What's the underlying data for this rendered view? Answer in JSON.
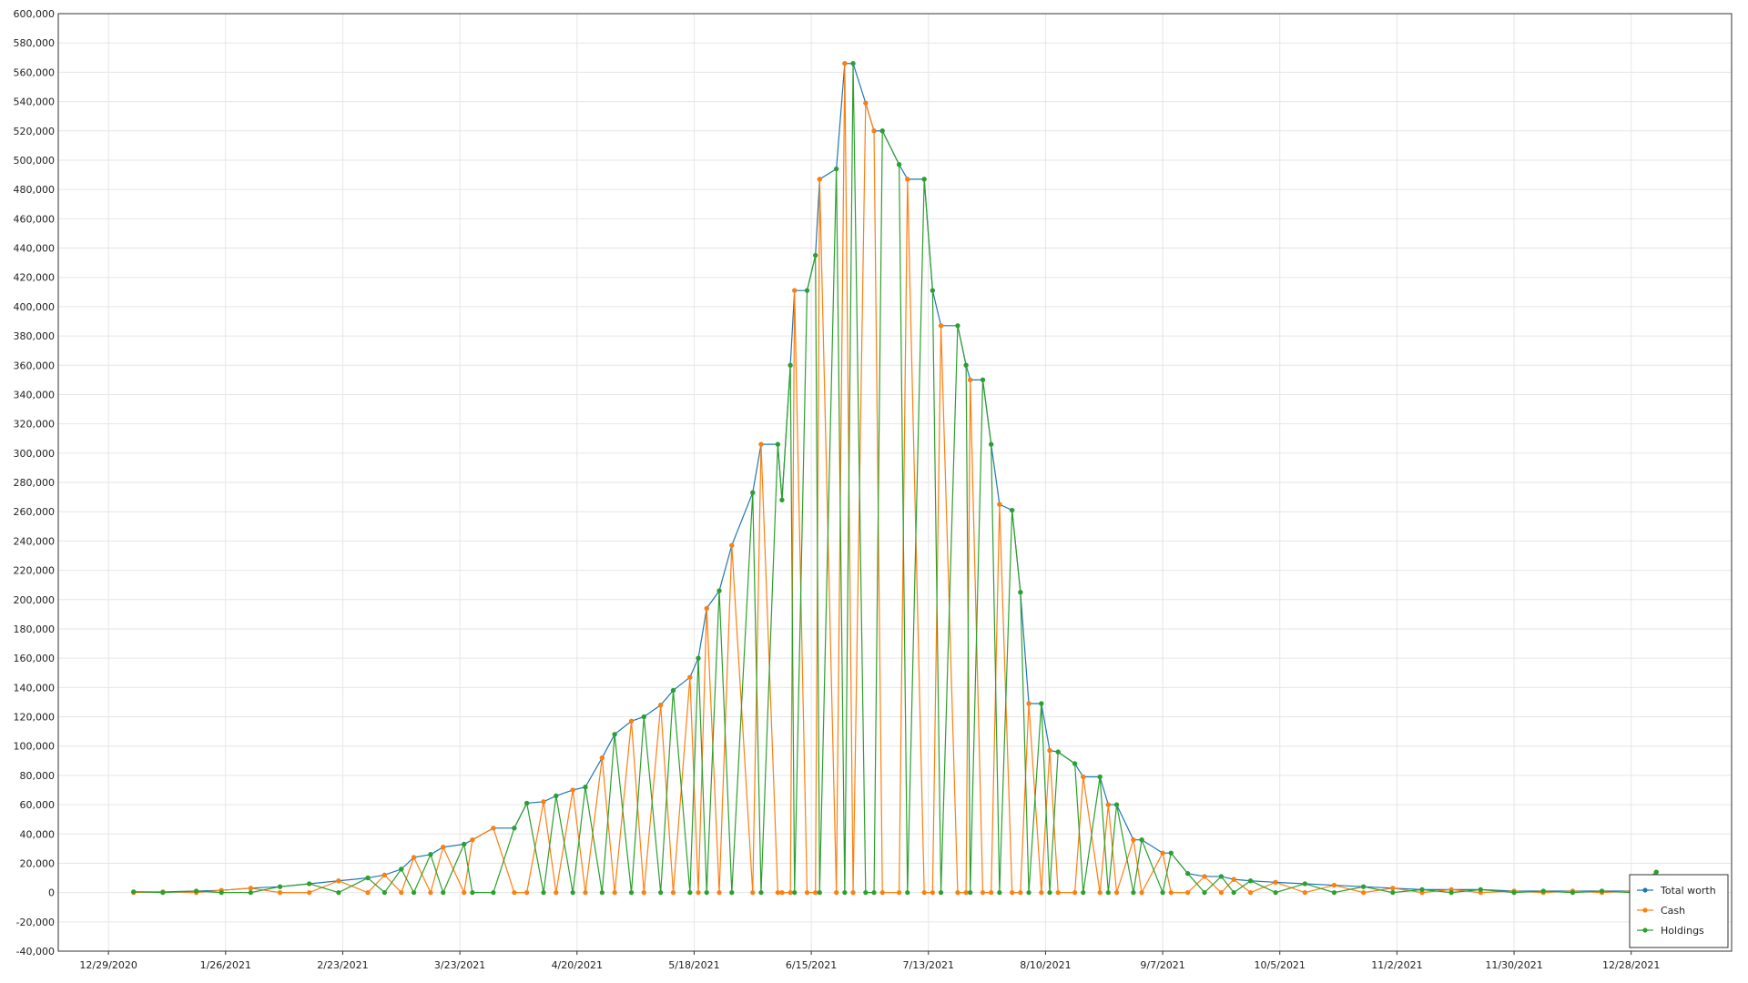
{
  "chart_data": {
    "type": "line",
    "x": [
      "1/4/2021",
      "1/11/2021",
      "1/19/2021",
      "1/25/2021",
      "2/1/2021",
      "2/8/2021",
      "2/15/2021",
      "2/22/2021",
      "3/1/2021",
      "3/5/2021",
      "3/9/2021",
      "3/12/2021",
      "3/16/2021",
      "3/19/2021",
      "3/24/2021",
      "3/26/2021",
      "3/31/2021",
      "4/5/2021",
      "4/8/2021",
      "4/12/2021",
      "4/15/2021",
      "4/19/2021",
      "4/22/2021",
      "4/26/2021",
      "4/29/2021",
      "5/3/2021",
      "5/6/2021",
      "5/10/2021",
      "5/13/2021",
      "5/17/2021",
      "5/19/2021",
      "5/21/2021",
      "5/24/2021",
      "5/27/2021",
      "6/1/2021",
      "6/3/2021",
      "6/7/2021",
      "6/8/2021",
      "6/10/2021",
      "6/11/2021",
      "6/14/2021",
      "6/16/2021",
      "6/17/2021",
      "6/21/2021",
      "6/23/2021",
      "6/25/2021",
      "6/28/2021",
      "6/30/2021",
      "7/2/2021",
      "7/6/2021",
      "7/8/2021",
      "7/12/2021",
      "7/14/2021",
      "7/16/2021",
      "7/20/2021",
      "7/22/2021",
      "7/23/2021",
      "7/26/2021",
      "7/28/2021",
      "7/30/2021",
      "8/2/2021",
      "8/4/2021",
      "8/6/2021",
      "8/9/2021",
      "8/11/2021",
      "8/13/2021",
      "8/17/2021",
      "8/19/2021",
      "8/23/2021",
      "8/25/2021",
      "8/27/2021",
      "8/31/2021",
      "9/2/2021",
      "9/7/2021",
      "9/9/2021",
      "9/13/2021",
      "9/17/2021",
      "9/21/2021",
      "9/24/2021",
      "9/28/2021",
      "10/4/2021",
      "10/11/2021",
      "10/18/2021",
      "10/25/2021",
      "11/1/2021",
      "11/8/2021",
      "11/15/2021",
      "11/22/2021",
      "11/30/2021",
      "12/7/2021",
      "12/14/2021",
      "12/21/2021",
      "12/28/2021",
      "1/3/2022"
    ],
    "series": [
      {
        "name": "Total worth",
        "color": "#1f77b4",
        "values": [
          500,
          500,
          1000,
          1500,
          3000,
          4000,
          6000,
          8000,
          10000,
          12000,
          16000,
          24000,
          26000,
          31000,
          33000,
          36000,
          44000,
          44000,
          61000,
          62000,
          66000,
          70000,
          72000,
          92000,
          108000,
          117000,
          120000,
          128000,
          138000,
          147000,
          160000,
          194000,
          206000,
          237000,
          273000,
          306000,
          306000,
          268000,
          360000,
          411000,
          411000,
          435000,
          487000,
          494000,
          566000,
          566000,
          539000,
          520000,
          520000,
          497000,
          487000,
          487000,
          411000,
          387000,
          387000,
          360000,
          350000,
          350000,
          306000,
          265000,
          261000,
          205000,
          129000,
          129000,
          97000,
          96000,
          88000,
          79000,
          79000,
          60000,
          60000,
          36000,
          36000,
          27000,
          27000,
          13000,
          11000,
          11000,
          9000,
          8000,
          7000,
          6000,
          5000,
          4000,
          3000,
          2000,
          2000,
          2000,
          1000,
          1000,
          1000,
          1000,
          1000,
          14000
        ]
      },
      {
        "name": "Cash",
        "color": "#ff7f0e",
        "values": [
          0,
          500,
          0,
          1500,
          3000,
          0,
          0,
          8000,
          0,
          12000,
          0,
          24000,
          0,
          31000,
          0,
          36000,
          44000,
          0,
          0,
          62000,
          0,
          70000,
          0,
          92000,
          0,
          117000,
          0,
          128000,
          0,
          147000,
          0,
          194000,
          0,
          237000,
          0,
          306000,
          0,
          0,
          0,
          411000,
          0,
          0,
          487000,
          0,
          566000,
          0,
          539000,
          520000,
          0,
          0,
          487000,
          0,
          0,
          387000,
          0,
          0,
          350000,
          0,
          0,
          265000,
          0,
          0,
          129000,
          0,
          97000,
          0,
          0,
          79000,
          0,
          60000,
          0,
          36000,
          0,
          27000,
          0,
          0,
          11000,
          0,
          9000,
          0,
          7000,
          0,
          5000,
          0,
          3000,
          0,
          2000,
          0,
          1000,
          0,
          1000,
          0,
          1000,
          0
        ]
      },
      {
        "name": "Holdings",
        "color": "#2ca02c",
        "values": [
          500,
          0,
          1000,
          0,
          0,
          4000,
          6000,
          0,
          10000,
          0,
          16000,
          0,
          26000,
          0,
          33000,
          0,
          0,
          44000,
          61000,
          0,
          66000,
          0,
          72000,
          0,
          108000,
          0,
          120000,
          0,
          138000,
          0,
          160000,
          0,
          206000,
          0,
          273000,
          0,
          306000,
          268000,
          360000,
          0,
          411000,
          435000,
          0,
          494000,
          0,
          566000,
          0,
          0,
          520000,
          497000,
          0,
          487000,
          411000,
          0,
          387000,
          360000,
          0,
          350000,
          306000,
          0,
          261000,
          205000,
          0,
          129000,
          0,
          96000,
          88000,
          0,
          79000,
          0,
          60000,
          0,
          36000,
          0,
          27000,
          13000,
          0,
          11000,
          0,
          8000,
          0,
          6000,
          0,
          4000,
          0,
          2000,
          0,
          2000,
          0,
          1000,
          0,
          1000,
          0,
          14000
        ]
      }
    ],
    "xlim": [
      "12/17/2020",
      "1/21/2022"
    ],
    "xticks": [
      "12/29/2020",
      "1/26/2021",
      "2/23/2021",
      "3/23/2021",
      "4/20/2021",
      "5/18/2021",
      "6/15/2021",
      "7/13/2021",
      "8/10/2021",
      "9/7/2021",
      "10/5/2021",
      "11/2/2021",
      "11/30/2021",
      "12/28/2021"
    ],
    "ylim": [
      -40000,
      600000
    ],
    "yticks": [
      {
        "value": -40000,
        "label": "-40,000"
      },
      {
        "value": -20000,
        "label": "-20,000"
      },
      0,
      {
        "value": 20000,
        "label": "20,000"
      },
      {
        "value": 40000,
        "label": "40,000"
      },
      {
        "value": 60000,
        "label": "60,000"
      },
      {
        "value": 80000,
        "label": "80,000"
      },
      {
        "value": 100000,
        "label": "100,000"
      },
      {
        "value": 120000,
        "label": "120,000"
      },
      {
        "value": 140000,
        "label": "140,000"
      },
      {
        "value": 160000,
        "label": "160,000"
      },
      {
        "value": 180000,
        "label": "180,000"
      },
      {
        "value": 200000,
        "label": "200,000"
      },
      {
        "value": 220000,
        "label": "220,000"
      },
      {
        "value": 240000,
        "label": "240,000"
      },
      {
        "value": 260000,
        "label": "260,000"
      },
      {
        "value": 280000,
        "label": "280,000"
      },
      {
        "value": 300000,
        "label": "300,000"
      },
      {
        "value": 320000,
        "label": "320,000"
      },
      {
        "value": 340000,
        "label": "340,000"
      },
      {
        "value": 360000,
        "label": "360,000"
      },
      {
        "value": 380000,
        "label": "380,000"
      },
      {
        "value": 400000,
        "label": "400,000"
      },
      {
        "value": 420000,
        "label": "420,000"
      },
      {
        "value": 440000,
        "label": "440,000"
      },
      {
        "value": 460000,
        "label": "460,000"
      },
      {
        "value": 480000,
        "label": "480,000"
      },
      {
        "value": 500000,
        "label": "500,000"
      },
      {
        "value": 520000,
        "label": "520,000"
      },
      {
        "value": 540000,
        "label": "540,000"
      },
      {
        "value": 560000,
        "label": "560,000"
      },
      {
        "value": 580000,
        "label": "580,000"
      },
      {
        "value": 600000,
        "label": "600,000"
      }
    ],
    "grid": true,
    "legend": "lower right"
  }
}
